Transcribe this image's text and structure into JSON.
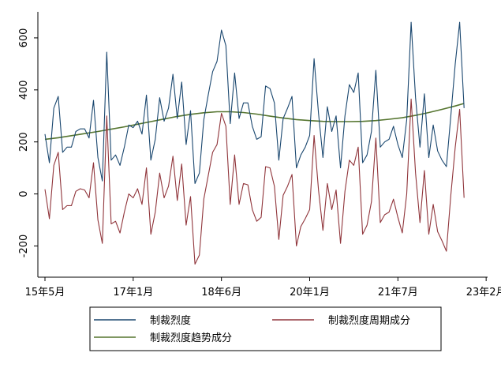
{
  "chart_data": {
    "type": "line",
    "title": "",
    "xlabel": "",
    "ylabel": "",
    "ylim": [
      -320,
      700
    ],
    "yticks": [
      -200,
      0,
      200,
      400,
      600
    ],
    "xlim": [
      0,
      95.5
    ],
    "x_tick_positions": [
      0,
      20,
      40,
      60,
      80,
      100
    ],
    "x_tick_labels": [
      "15年5月",
      "17年1月",
      "18年6月",
      "20年1月",
      "21年7月",
      "23年2月"
    ],
    "grid": false,
    "legend_position": "bottom",
    "x_unit": "months since 15年5月",
    "series": [
      {
        "name": "制裁烈度",
        "color": "#1a476f",
        "x": [
          0,
          1,
          2,
          3,
          4,
          5,
          6,
          7,
          8,
          9,
          10,
          11,
          12,
          13,
          14,
          15,
          16,
          17,
          18,
          19,
          20,
          21,
          22,
          23,
          24,
          25,
          26,
          27,
          28,
          29,
          30,
          31,
          32,
          33,
          34,
          35,
          36,
          37,
          38,
          39,
          40,
          41,
          42,
          43,
          44,
          45,
          46,
          47,
          48,
          49,
          50,
          51,
          52,
          53,
          54,
          55,
          56,
          57,
          58,
          59,
          60,
          61,
          62,
          63,
          64,
          65,
          66,
          67,
          68,
          69,
          70,
          71,
          72,
          73,
          74,
          75,
          76,
          77,
          78,
          79,
          80,
          81,
          82,
          83,
          84,
          85,
          86,
          87,
          88,
          89,
          90,
          91,
          92,
          93,
          94,
          95
        ],
        "values": [
          230,
          120,
          330,
          375,
          160,
          180,
          180,
          240,
          250,
          250,
          215,
          360,
          140,
          50,
          545,
          130,
          150,
          110,
          180,
          265,
          255,
          280,
          230,
          380,
          130,
          210,
          370,
          280,
          330,
          460,
          290,
          430,
          190,
          320,
          40,
          80,
          285,
          380,
          470,
          510,
          630,
          570,
          270,
          465,
          290,
          350,
          350,
          260,
          210,
          220,
          415,
          405,
          350,
          130,
          290,
          330,
          375,
          100,
          150,
          180,
          225,
          520,
          310,
          140,
          335,
          240,
          300,
          100,
          300,
          420,
          390,
          465,
          120,
          150,
          240,
          475,
          180,
          200,
          210,
          260,
          190,
          140,
          285,
          660,
          370,
          180,
          385,
          140,
          265,
          165,
          130,
          105,
          300,
          500,
          660,
          330
        ]
      },
      {
        "name": "制裁烈度周期成分",
        "color": "#90353b",
        "x": [
          0,
          1,
          2,
          3,
          4,
          5,
          6,
          7,
          8,
          9,
          10,
          11,
          12,
          13,
          14,
          15,
          16,
          17,
          18,
          19,
          20,
          21,
          22,
          23,
          24,
          25,
          26,
          27,
          28,
          29,
          30,
          31,
          32,
          33,
          34,
          35,
          36,
          37,
          38,
          39,
          40,
          41,
          42,
          43,
          44,
          45,
          46,
          47,
          48,
          49,
          50,
          51,
          52,
          53,
          54,
          55,
          56,
          57,
          58,
          59,
          60,
          61,
          62,
          63,
          64,
          65,
          66,
          67,
          68,
          69,
          70,
          71,
          72,
          73,
          74,
          75,
          76,
          77,
          78,
          79,
          80,
          81,
          82,
          83,
          84,
          85,
          86,
          87,
          88,
          89,
          90,
          91,
          92,
          93,
          94,
          95
        ],
        "values": [
          18,
          -95,
          110,
          160,
          -60,
          -45,
          -45,
          10,
          20,
          15,
          -15,
          120,
          -100,
          -190,
          300,
          -115,
          -105,
          -150,
          -70,
          0,
          -15,
          20,
          -40,
          100,
          -155,
          -70,
          80,
          -15,
          30,
          145,
          -25,
          115,
          -120,
          -10,
          -270,
          -235,
          -20,
          70,
          160,
          190,
          310,
          260,
          -40,
          150,
          -40,
          40,
          35,
          -60,
          -105,
          -90,
          105,
          100,
          30,
          -175,
          -5,
          30,
          75,
          -200,
          -125,
          -95,
          -60,
          225,
          15,
          -140,
          40,
          -60,
          15,
          -190,
          10,
          130,
          110,
          180,
          -155,
          -120,
          -30,
          215,
          -110,
          -80,
          -70,
          -20,
          -90,
          -150,
          0,
          365,
          80,
          -110,
          90,
          -155,
          -40,
          -145,
          -180,
          -220,
          -5,
          180,
          325,
          -15
        ]
      },
      {
        "name": "制裁烈度趋势成分",
        "color": "#55752f",
        "x": [
          0,
          3,
          6,
          9,
          12,
          15,
          18,
          21,
          24,
          27,
          30,
          33,
          36,
          39,
          42,
          45,
          48,
          51,
          54,
          57,
          60,
          63,
          66,
          69,
          72,
          75,
          78,
          81,
          84,
          87,
          90,
          93,
          95
        ],
        "values": [
          210,
          216,
          224,
          232,
          240,
          249,
          258,
          268,
          278,
          288,
          298,
          306,
          312,
          316,
          316,
          313,
          307,
          299,
          292,
          286,
          282,
          279,
          278,
          278,
          279,
          282,
          287,
          293,
          302,
          313,
          325,
          338,
          348
        ]
      }
    ]
  }
}
